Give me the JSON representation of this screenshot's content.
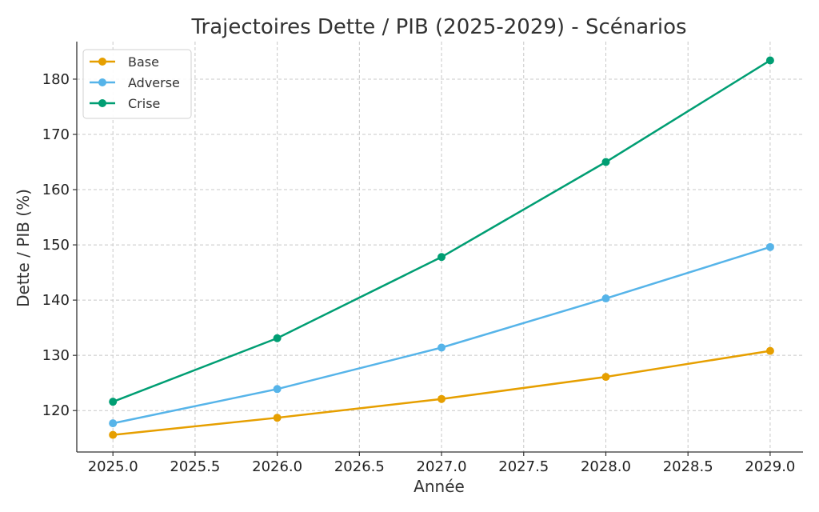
{
  "chart_data": {
    "type": "line",
    "title": "Trajectoires Dette / PIB (2025-2029) - Scénarios",
    "xlabel": "Année",
    "ylabel": "Dette / PIB (%)",
    "x": [
      2025,
      2026,
      2027,
      2028,
      2029
    ],
    "xlim": [
      2024.78,
      2029.2
    ],
    "ylim": [
      112.5,
      186.8
    ],
    "xticks": [
      2025.0,
      2025.5,
      2026.0,
      2026.5,
      2027.0,
      2027.5,
      2028.0,
      2028.5,
      2029.0
    ],
    "xtick_labels": [
      "2025.0",
      "2025.5",
      "2026.0",
      "2026.5",
      "2027.0",
      "2027.5",
      "2028.0",
      "2028.5",
      "2029.0"
    ],
    "yticks": [
      120,
      130,
      140,
      150,
      160,
      170,
      180
    ],
    "ytick_labels": [
      "120",
      "130",
      "140",
      "150",
      "160",
      "170",
      "180"
    ],
    "grid": true,
    "legend_position": "top-left",
    "series": [
      {
        "name": "Base",
        "color": "#E69F00",
        "values": [
          115.6,
          118.7,
          122.1,
          126.1,
          130.8
        ]
      },
      {
        "name": "Adverse",
        "color": "#56B4E9",
        "values": [
          117.7,
          123.9,
          131.4,
          140.3,
          149.6
        ]
      },
      {
        "name": "Crise",
        "color": "#009E73",
        "values": [
          121.6,
          133.1,
          147.8,
          165.0,
          183.4
        ]
      }
    ]
  }
}
